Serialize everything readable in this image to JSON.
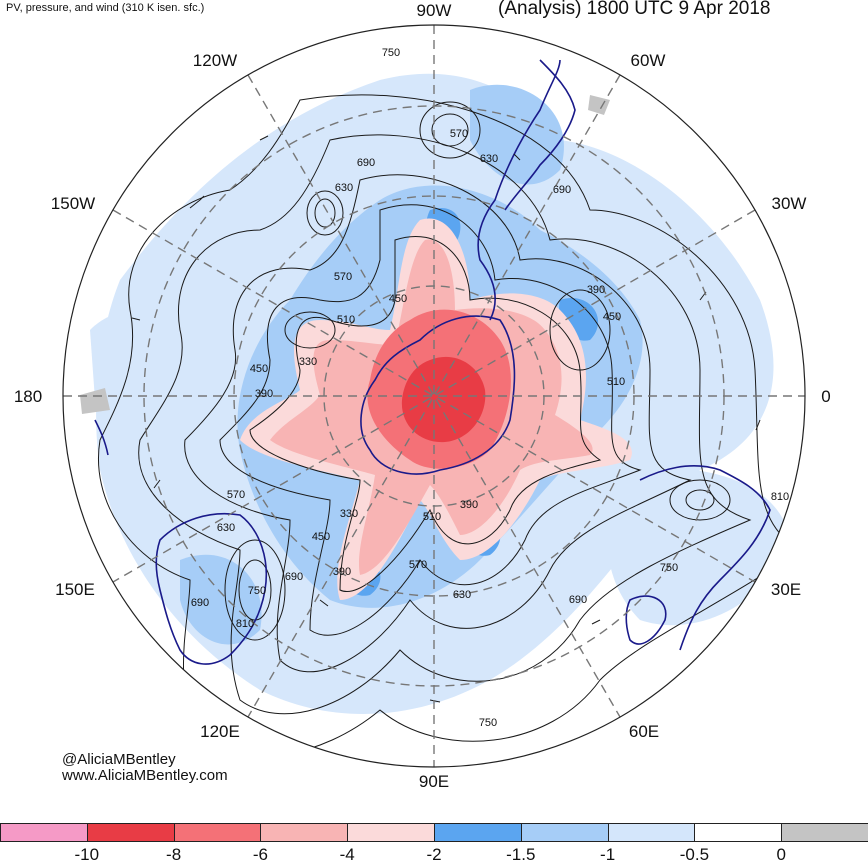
{
  "title_left": "PV, pressure, and wind (310 K isen. sfc.)",
  "title_right": "(Analysis) 1800 UTC 9 Apr 2018",
  "credit_handle": "@AliciaMBentley",
  "credit_url": "www.AliciaMBentley.com",
  "longitude_labels": {
    "lon_90w": "90W",
    "lon_120w": "120W",
    "lon_60w": "60W",
    "lon_150w": "150W",
    "lon_30w": "30W",
    "lon_180": "180",
    "lon_0": "0",
    "lon_150e": "150E",
    "lon_30e": "30E",
    "lon_120e": "120E",
    "lon_60e": "60E",
    "lon_90e": "90E"
  },
  "pressure_contour_labels": [
    "750",
    "570",
    "690",
    "630",
    "690",
    "630",
    "570",
    "450",
    "510",
    "330",
    "390",
    "450",
    "390",
    "450",
    "510",
    "390",
    "330",
    "510",
    "450",
    "390",
    "570",
    "630",
    "690",
    "750",
    "810",
    "690",
    "750",
    "690",
    "630",
    "570",
    "750",
    "810"
  ],
  "colorbar": {
    "bins": [
      {
        "color": "#f59ac6"
      },
      {
        "color": "#e83c45"
      },
      {
        "color": "#f47177"
      },
      {
        "color": "#f8b4b4"
      },
      {
        "color": "#fbdada"
      },
      {
        "color": "#5ba5f0"
      },
      {
        "color": "#a6cdf7"
      },
      {
        "color": "#d4e6fb"
      },
      {
        "color": "#ffffff"
      },
      {
        "color": "#c4c4c4"
      }
    ],
    "tick_labels": [
      "-10",
      "-8",
      "-6",
      "-4",
      "-2",
      "-1.5",
      "-1",
      "-0.5",
      "0"
    ]
  }
}
